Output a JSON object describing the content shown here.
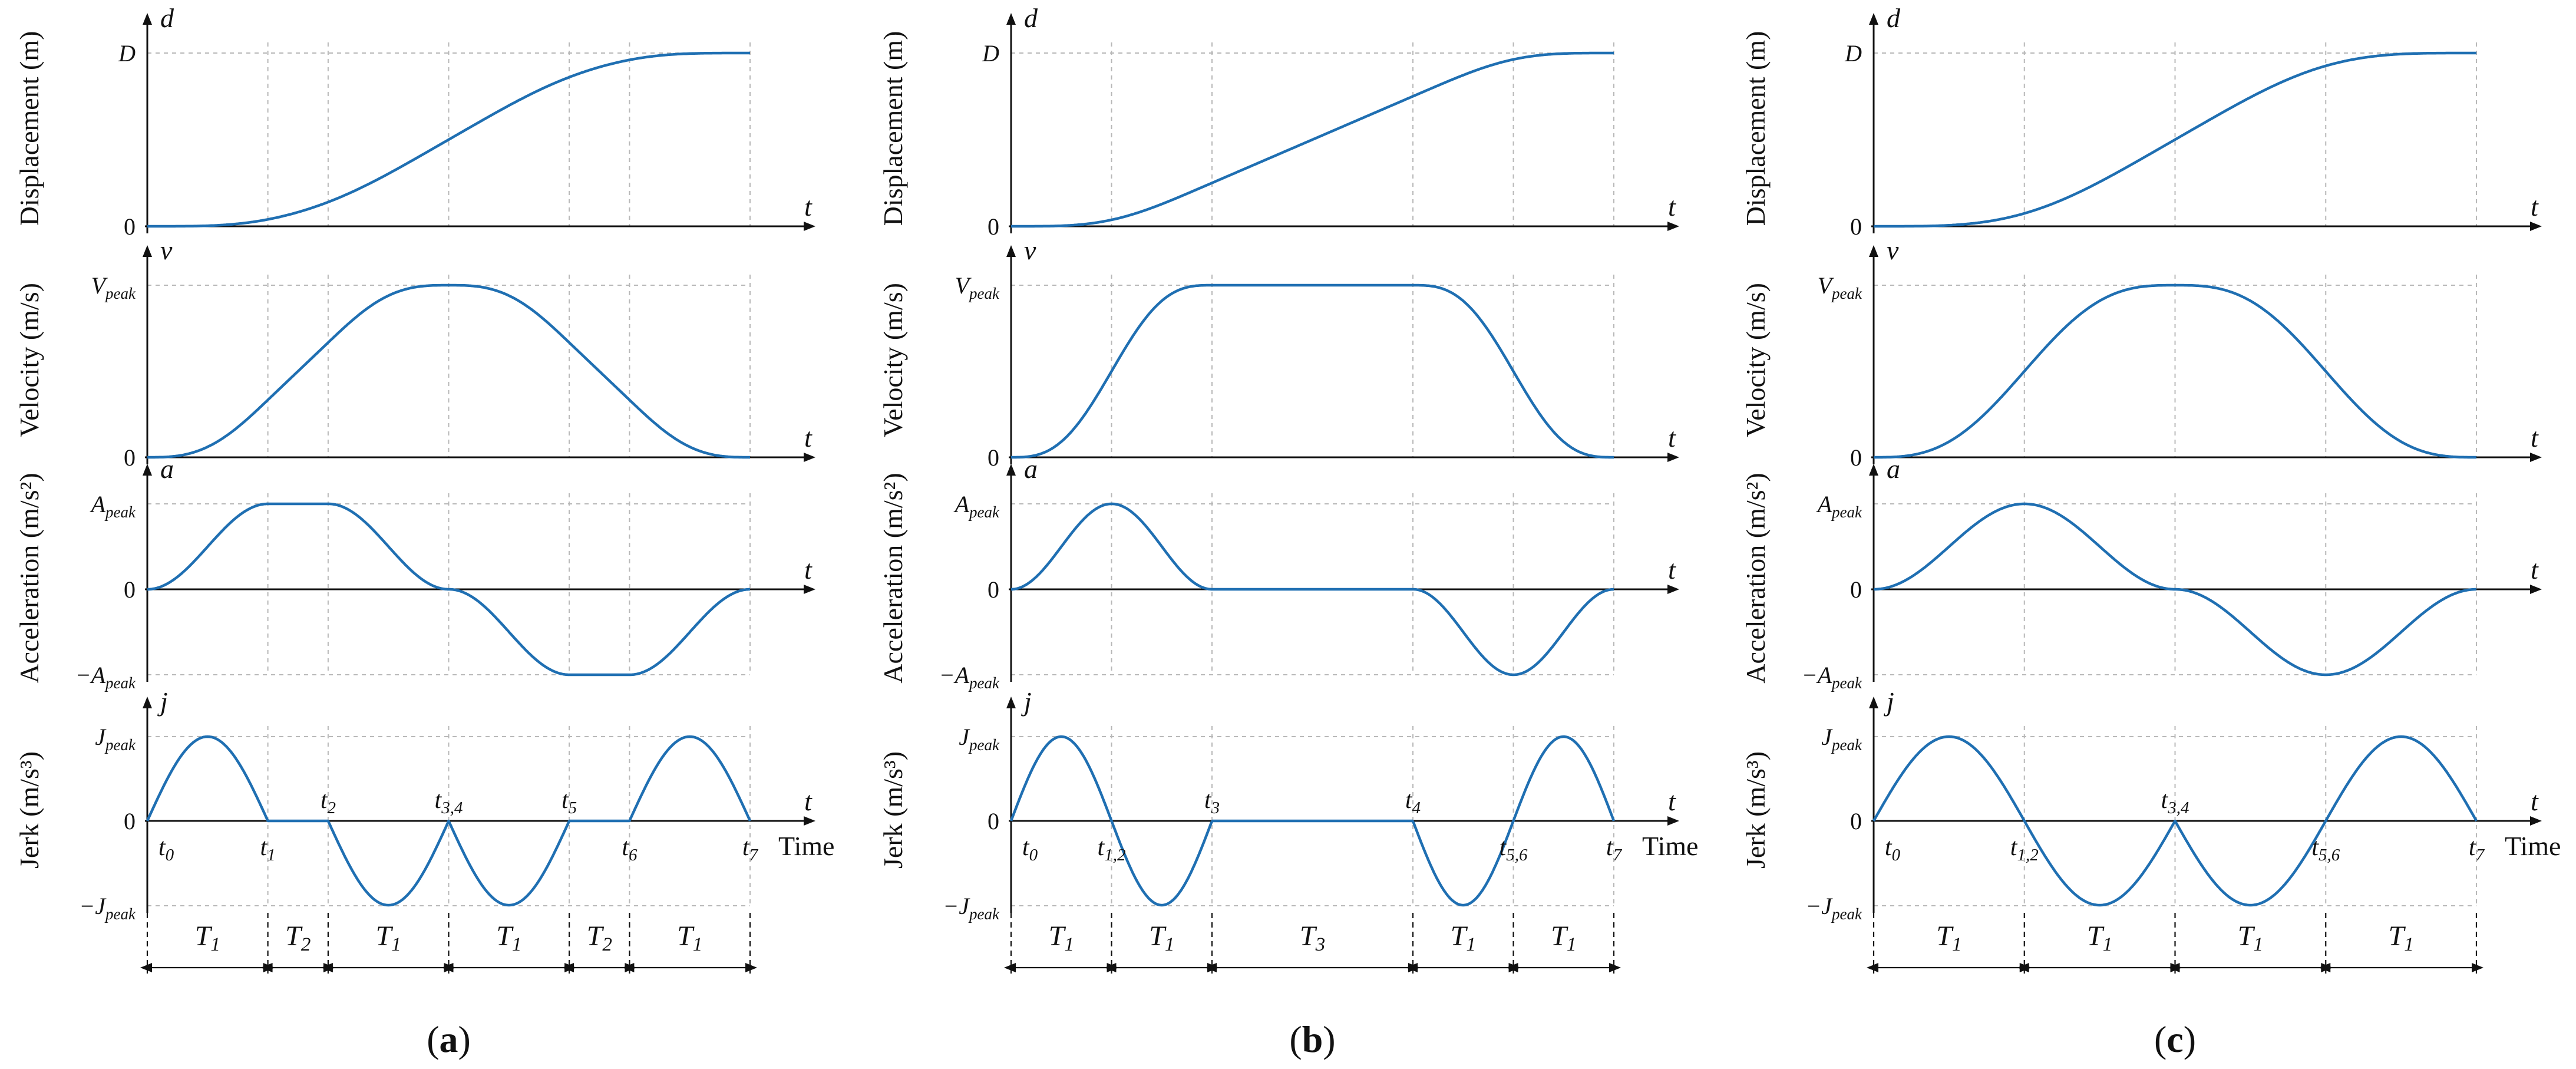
{
  "chart_data": [
    {
      "panel_label": "(a)",
      "type": "line",
      "phase_times": [
        0,
        1,
        1.5,
        2.5,
        2.5,
        3.5,
        4,
        5
      ],
      "time_labels": [
        {
          "base": "t",
          "sub": "0"
        },
        {
          "base": "t",
          "sub": "1"
        },
        {
          "base": "t",
          "sub": "2"
        },
        {
          "base": "t",
          "sub": "3,4"
        },
        {
          "base": "t",
          "sub": "5"
        },
        {
          "base": "t",
          "sub": "6"
        },
        {
          "base": "t",
          "sub": "7"
        }
      ],
      "intervals": [
        {
          "base": "T",
          "sub": "1"
        },
        {
          "base": "T",
          "sub": "2"
        },
        {
          "base": "T",
          "sub": "1"
        },
        {
          "base": "T",
          "sub": "1"
        },
        {
          "base": "T",
          "sub": "2"
        },
        {
          "base": "T",
          "sub": "1"
        }
      ],
      "x_unit_label": "Time",
      "subplots": [
        {
          "ylabel": "Displacement (m)",
          "axis_symbol": "d",
          "x_symbol": "t",
          "ticks": [
            {
              "base": "D",
              "sub": ""
            },
            {
              "base": "0",
              "sub": ""
            }
          ],
          "grid": true
        },
        {
          "ylabel": "Velocity (m/s)",
          "axis_symbol": "v",
          "x_symbol": "t",
          "ticks": [
            {
              "base": "V",
              "sub": "peak"
            },
            {
              "base": "0",
              "sub": ""
            }
          ],
          "grid": true
        },
        {
          "ylabel": "Acceleration (m/s²)",
          "axis_symbol": "a",
          "x_symbol": "t",
          "ticks": [
            {
              "base": "A",
              "sub": "peak"
            },
            {
              "base": "0",
              "sub": ""
            },
            {
              "base": "−A",
              "sub": "peak"
            }
          ],
          "grid": true
        },
        {
          "ylabel": "Jerk (m/s³)",
          "axis_symbol": "j",
          "x_symbol": "t",
          "ticks": [
            {
              "base": "J",
              "sub": "peak"
            },
            {
              "base": "0",
              "sub": ""
            },
            {
              "base": "−J",
              "sub": "peak"
            }
          ],
          "grid": true
        }
      ]
    },
    {
      "panel_label": "(b)",
      "type": "line",
      "phase_times": [
        0,
        1,
        1,
        2,
        4,
        5,
        5,
        6
      ],
      "time_labels": [
        {
          "base": "t",
          "sub": "0"
        },
        {
          "base": "t",
          "sub": "1,2"
        },
        {
          "base": "t",
          "sub": "3"
        },
        {
          "base": "t",
          "sub": "4"
        },
        {
          "base": "t",
          "sub": "5,6"
        },
        {
          "base": "t",
          "sub": "7"
        }
      ],
      "intervals": [
        {
          "base": "T",
          "sub": "1"
        },
        {
          "base": "T",
          "sub": "1"
        },
        {
          "base": "T",
          "sub": "3"
        },
        {
          "base": "T",
          "sub": "1"
        },
        {
          "base": "T",
          "sub": "1"
        }
      ],
      "x_unit_label": "Time",
      "subplots": [
        {
          "ylabel": "Displacement (m)",
          "axis_symbol": "d",
          "x_symbol": "t",
          "ticks": [
            {
              "base": "D",
              "sub": ""
            },
            {
              "base": "0",
              "sub": ""
            }
          ],
          "grid": true
        },
        {
          "ylabel": "Velocity (m/s)",
          "axis_symbol": "v",
          "x_symbol": "t",
          "ticks": [
            {
              "base": "V",
              "sub": "peak"
            },
            {
              "base": "0",
              "sub": ""
            }
          ],
          "grid": true
        },
        {
          "ylabel": "Acceleration (m/s²)",
          "axis_symbol": "a",
          "x_symbol": "t",
          "ticks": [
            {
              "base": "A",
              "sub": "peak"
            },
            {
              "base": "0",
              "sub": ""
            },
            {
              "base": "−A",
              "sub": "peak"
            }
          ],
          "grid": true
        },
        {
          "ylabel": "Jerk (m/s³)",
          "axis_symbol": "j",
          "x_symbol": "t",
          "ticks": [
            {
              "base": "J",
              "sub": "peak"
            },
            {
              "base": "0",
              "sub": ""
            },
            {
              "base": "−J",
              "sub": "peak"
            }
          ],
          "grid": true
        }
      ]
    },
    {
      "panel_label": "(c)",
      "type": "line",
      "phase_times": [
        0,
        1,
        1,
        2,
        2,
        3,
        3,
        4
      ],
      "time_labels": [
        {
          "base": "t",
          "sub": "0"
        },
        {
          "base": "t",
          "sub": "1,2"
        },
        {
          "base": "t",
          "sub": "3,4"
        },
        {
          "base": "t",
          "sub": "5,6"
        },
        {
          "base": "t",
          "sub": "7"
        }
      ],
      "intervals": [
        {
          "base": "T",
          "sub": "1"
        },
        {
          "base": "T",
          "sub": "1"
        },
        {
          "base": "T",
          "sub": "1"
        },
        {
          "base": "T",
          "sub": "1"
        }
      ],
      "x_unit_label": "Time",
      "subplots": [
        {
          "ylabel": "Displacement (m)",
          "axis_symbol": "d",
          "x_symbol": "t",
          "ticks": [
            {
              "base": "D",
              "sub": ""
            },
            {
              "base": "0",
              "sub": ""
            }
          ],
          "grid": true
        },
        {
          "ylabel": "Velocity (m/s)",
          "axis_symbol": "v",
          "x_symbol": "t",
          "ticks": [
            {
              "base": "V",
              "sub": "peak"
            },
            {
              "base": "0",
              "sub": ""
            }
          ],
          "grid": true
        },
        {
          "ylabel": "Acceleration (m/s²)",
          "axis_symbol": "a",
          "x_symbol": "t",
          "ticks": [
            {
              "base": "A",
              "sub": "peak"
            },
            {
              "base": "0",
              "sub": ""
            },
            {
              "base": "−A",
              "sub": "peak"
            }
          ],
          "grid": true
        },
        {
          "ylabel": "Jerk (m/s³)",
          "axis_symbol": "j",
          "x_symbol": "t",
          "ticks": [
            {
              "base": "J",
              "sub": "peak"
            },
            {
              "base": "0",
              "sub": ""
            },
            {
              "base": "−J",
              "sub": "peak"
            }
          ],
          "grid": true
        }
      ]
    }
  ],
  "colors": {
    "curve": "#1f6fb2",
    "axis": "#111111",
    "grid": "#b8b8b8"
  }
}
